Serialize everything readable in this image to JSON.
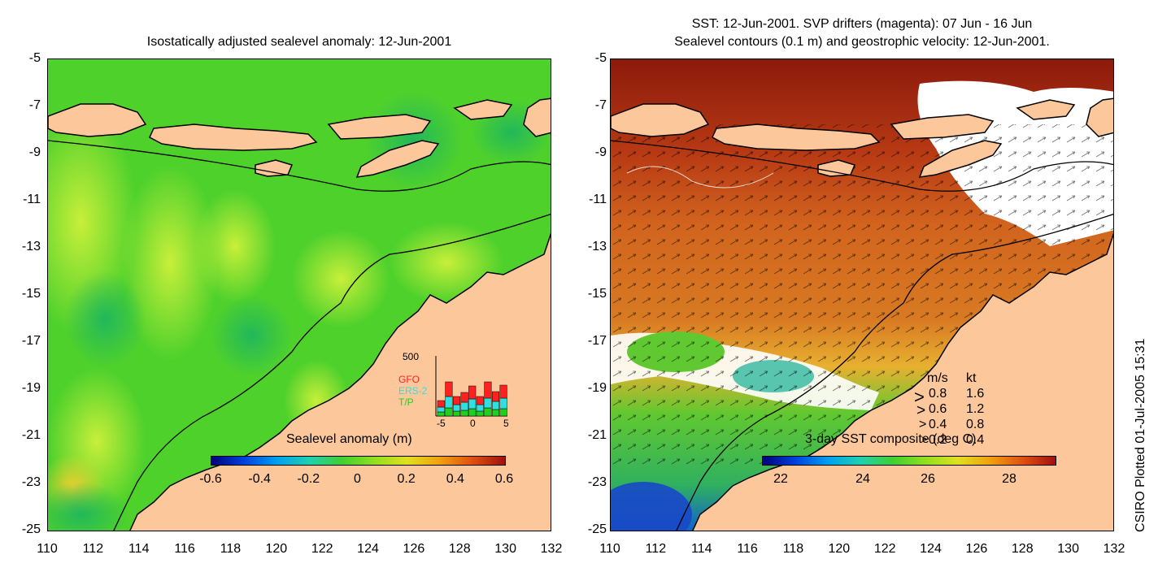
{
  "left_panel": {
    "title": "Isostatically adjusted sealevel anomaly: 12-Jun-2001",
    "colorbar": {
      "title": "Sealevel anomaly (m)",
      "ticks": [
        "-0.6",
        "-0.4",
        "-0.2",
        "0",
        "0.2",
        "0.4",
        "0.6"
      ]
    },
    "inset": {
      "ymax_label": "500",
      "legend": [
        "GFO",
        "ERS-2",
        "T/P"
      ],
      "legend_colors": [
        "#ff2020",
        "#30e0e0",
        "#20d020"
      ],
      "x_ticks": [
        "-5",
        "0",
        "5"
      ]
    }
  },
  "right_panel": {
    "title_line1": "SST: 12-Jun-2001. SVP drifters (magenta): 07 Jun - 16 Jun",
    "title_line2": "Sealevel contours (0.1 m) and geostrophic velocity: 12-Jun-2001.",
    "colorbar": {
      "title": "3-day SST composite (deg C)",
      "ticks": [
        "22",
        "24",
        "26",
        "28"
      ]
    },
    "velocity_legend": {
      "header_ms": "m/s",
      "header_kt": "kt",
      "rows": [
        {
          "ms": "0.8",
          "kt": "1.6"
        },
        {
          "ms": "0.6",
          "kt": "1.2"
        },
        {
          "ms": "0.4",
          "kt": "0.8"
        },
        {
          "ms": "0.2",
          "kt": "0.4"
        }
      ]
    }
  },
  "axes": {
    "y_ticks": [
      "-5",
      "-7",
      "-9",
      "-11",
      "-13",
      "-15",
      "-17",
      "-19",
      "-21",
      "-23",
      "-25"
    ],
    "x_ticks": [
      "110",
      "112",
      "114",
      "116",
      "118",
      "120",
      "122",
      "124",
      "126",
      "128",
      "130",
      "132"
    ]
  },
  "credit": "CSIRO Plotted 01-Jul-2005 15:31",
  "colors": {
    "land": "#fcc89b",
    "sla_ocean": "#4fd12c",
    "sst_warm": "#c8501a",
    "sst_hot": "#8c1a0c"
  }
}
